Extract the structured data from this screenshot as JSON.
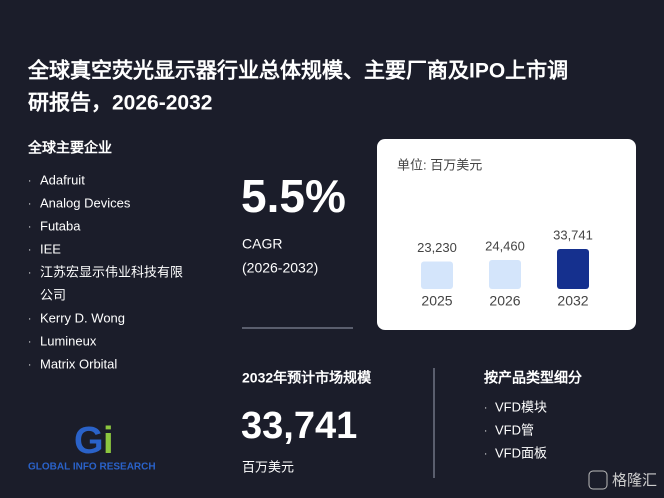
{
  "header": {
    "title_line1": "全球真空荧光显示器行业总体规模、主要厂商及IPO上市调",
    "title_line2": "研报告，2026-2032"
  },
  "companies": {
    "title": "全球主要企业",
    "items": [
      "Adafruit",
      "Analog Devices",
      "Futaba",
      "IEE",
      "江苏宏显示伟业科技有限",
      "公司",
      "Kerry D. Wong",
      "Lumineux",
      "Matrix Orbital"
    ]
  },
  "cagr": {
    "value": "5.5%",
    "label": "CAGR",
    "period": "(2026-2032)"
  },
  "chart": {
    "type": "bar",
    "unit_label": "单位: 百万美元",
    "categories": [
      "2025",
      "2026",
      "2032"
    ],
    "values": [
      23230,
      24460,
      33741
    ],
    "value_labels": [
      "23,230",
      "24,460",
      "33,741"
    ],
    "colors": [
      "#d4e5fb",
      "#d4e5fb",
      "#15308e"
    ]
  },
  "market": {
    "title": "2032年预计市场规模",
    "value": "33,741",
    "unit": "百万美元"
  },
  "segments": {
    "title": "按产品类型细分",
    "items": [
      "VFD模块",
      "VFD管",
      "VFD面板"
    ]
  },
  "logo": {
    "text": "GLOBAL INFO RESEARCH"
  },
  "watermark": "格隆汇"
}
